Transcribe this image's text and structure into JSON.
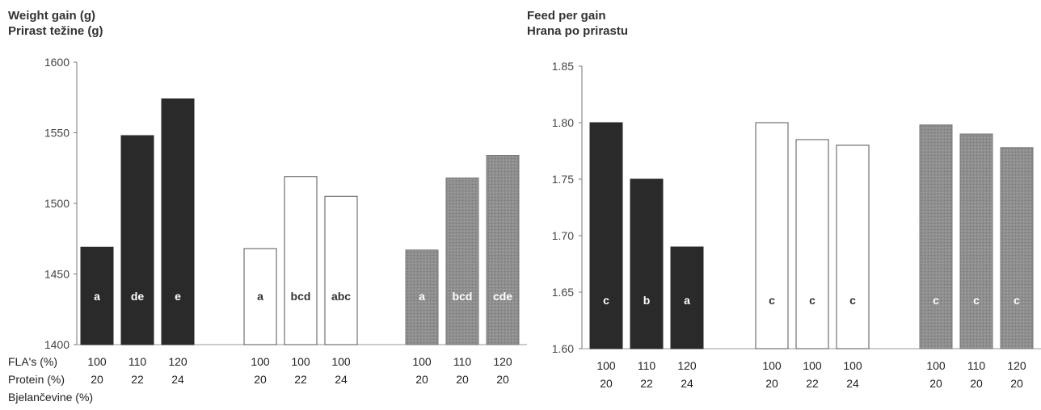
{
  "left_title": [
    "Weight gain (g)",
    "Prirast težine (g)"
  ],
  "right_title": [
    "Feed per gain",
    "Hrana po prirastu"
  ],
  "row_labels": [
    "FLA's (%)",
    "Protein (%)",
    "Bjelančevine (%)"
  ],
  "colors": {
    "dark": "#2a2a2a",
    "white": "#ffffff",
    "gray": "#8f8f8f",
    "outline": "#555555"
  },
  "chart_data": [
    {
      "type": "bar",
      "title": "Weight gain (g) / Prirast težine (g)",
      "ylim": [
        1400,
        1600
      ],
      "yticks": [
        "1400",
        "1450",
        "1500",
        "1550",
        "1600"
      ],
      "groups": [
        {
          "style": "dark",
          "fla": [
            "100",
            "110",
            "120"
          ],
          "protein": [
            "20",
            "22",
            "24"
          ],
          "values": [
            1469,
            1548,
            1574
          ],
          "labels": [
            "a",
            "de",
            "e"
          ]
        },
        {
          "style": "white",
          "fla": [
            "100",
            "100",
            "100"
          ],
          "protein": [
            "20",
            "22",
            "24"
          ],
          "values": [
            1468,
            1519,
            1505
          ],
          "labels": [
            "a",
            "bcd",
            "abc"
          ]
        },
        {
          "style": "gray",
          "fla": [
            "100",
            "110",
            "120"
          ],
          "protein": [
            "20",
            "20",
            "20"
          ],
          "values": [
            1467,
            1518,
            1534
          ],
          "labels": [
            "a",
            "bcd",
            "cde"
          ]
        }
      ]
    },
    {
      "type": "bar",
      "title": "Feed per gain / Hrana po prirastu",
      "ylim": [
        1.6,
        1.85
      ],
      "yticks": [
        "1.60",
        "1.65",
        "1.70",
        "1.75",
        "1.80",
        "1.85"
      ],
      "groups": [
        {
          "style": "dark",
          "fla": [
            "100",
            "110",
            "120"
          ],
          "protein": [
            "20",
            "22",
            "24"
          ],
          "values": [
            1.8,
            1.75,
            1.69
          ],
          "labels": [
            "c",
            "b",
            "a"
          ]
        },
        {
          "style": "white",
          "fla": [
            "100",
            "100",
            "100"
          ],
          "protein": [
            "20",
            "22",
            "24"
          ],
          "values": [
            1.8,
            1.785,
            1.78
          ],
          "labels": [
            "c",
            "c",
            "c"
          ]
        },
        {
          "style": "gray",
          "fla": [
            "100",
            "110",
            "120"
          ],
          "protein": [
            "20",
            "20",
            "20"
          ],
          "values": [
            1.798,
            1.79,
            1.778
          ],
          "labels": [
            "c",
            "c",
            "c"
          ]
        }
      ]
    }
  ]
}
